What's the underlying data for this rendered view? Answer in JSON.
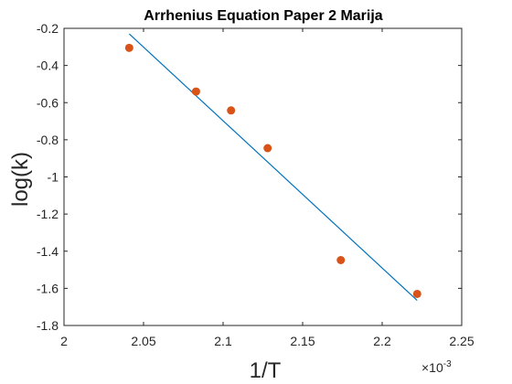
{
  "chart_data": {
    "type": "scatter",
    "title": "Arrhenius Equation Paper 2 Marija",
    "xlabel": "1/T",
    "ylabel": "log(k)",
    "x_exponent_label": "×10",
    "x_exponent_power": "-3",
    "xlim": [
      2.0,
      2.25
    ],
    "ylim": [
      -1.8,
      -0.2
    ],
    "x_ticks": [
      2.0,
      2.05,
      2.1,
      2.15,
      2.2,
      2.25
    ],
    "x_tick_labels": [
      "2",
      "2.05",
      "2.1",
      "2.15",
      "2.2",
      "2.25"
    ],
    "y_ticks": [
      -1.8,
      -1.6,
      -1.4,
      -1.2,
      -1.0,
      -0.8,
      -0.6,
      -0.4,
      -0.2
    ],
    "y_tick_labels": [
      "-1.8",
      "-1.6",
      "-1.4",
      "-1.2",
      "-1",
      "-0.8",
      "-0.6",
      "-0.4",
      "-0.2"
    ],
    "grid": false,
    "series": [
      {
        "kind": "points",
        "color": "#d95319",
        "x": [
          2.041,
          2.083,
          2.105,
          2.128,
          2.174,
          2.222
        ],
        "y": [
          -0.305,
          -0.54,
          -0.642,
          -0.845,
          -1.448,
          -1.63
        ]
      },
      {
        "kind": "line",
        "color": "#0072bd",
        "x": [
          2.041,
          2.222
        ],
        "y": [
          -0.23,
          -1.665
        ]
      }
    ]
  }
}
